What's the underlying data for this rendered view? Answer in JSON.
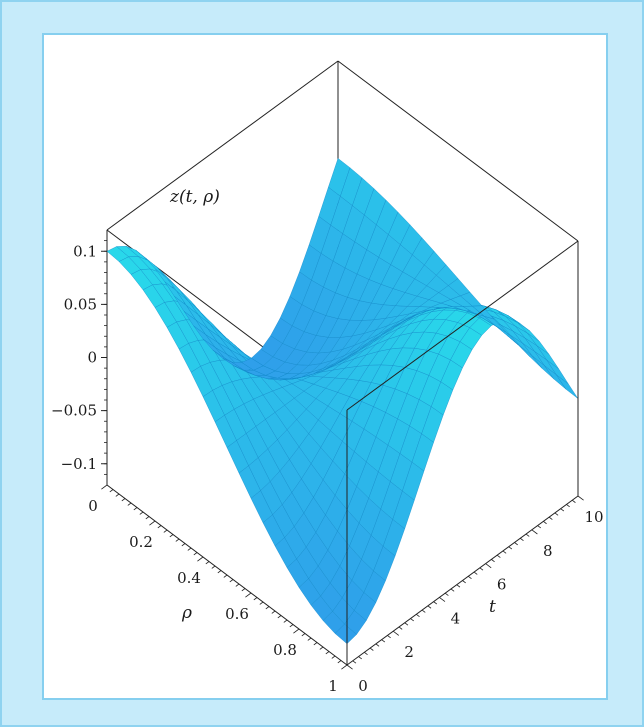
{
  "chart_data": {
    "type": "surface3d",
    "title": "",
    "zlabel": "z(t, ρ)",
    "xlabel": "t",
    "ylabel": "ρ",
    "t_range": [
      0,
      10
    ],
    "rho_range": [
      0,
      1
    ],
    "z_range": [
      -0.12,
      0.12
    ],
    "z_ticks": [
      "0.1",
      "0.05",
      "0",
      "−0.05",
      "−0.1"
    ],
    "z_tick_values": [
      0.1,
      0.05,
      0,
      -0.05,
      -0.1
    ],
    "rho_ticks": [
      "0",
      "0.2",
      "0.4",
      "0.6",
      "0.8",
      "1"
    ],
    "rho_tick_values": [
      0,
      0.2,
      0.4,
      0.6,
      0.8,
      1
    ],
    "t_ticks": [
      "0",
      "2",
      "4",
      "6",
      "8",
      "10"
    ],
    "t_tick_values": [
      0,
      2,
      4,
      6,
      8,
      10
    ],
    "surface": "z(t, ρ) = 0.1 · cos(0.5·t) · cos(π·ρ)",
    "surface_color": "#29b6ea",
    "grid": false,
    "box": true
  }
}
